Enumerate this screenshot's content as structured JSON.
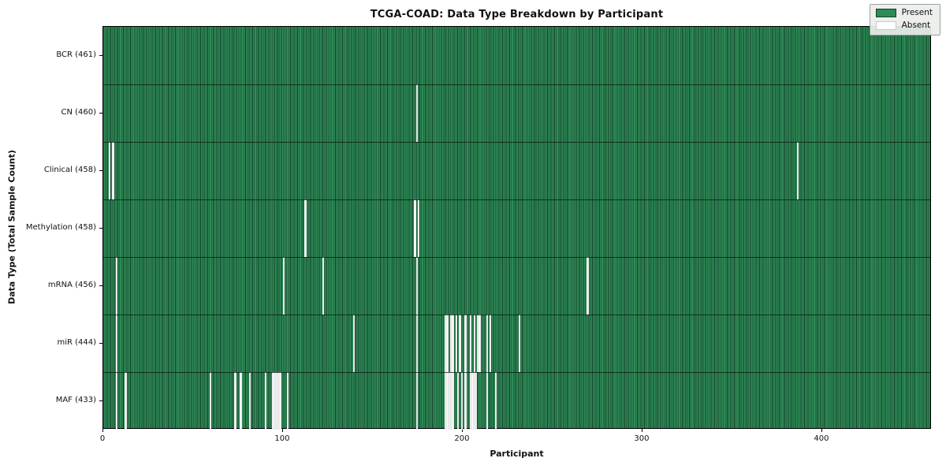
{
  "chart_data": {
    "type": "heatmap",
    "title": "TCGA-COAD: Data Type Breakdown by Participant",
    "xlabel": "Participant",
    "ylabel": "Data Type (Total Sample Count)",
    "n_participants": 461,
    "x_ticks": [
      0,
      100,
      200,
      300,
      400
    ],
    "grid": false,
    "legend_position": "upper right",
    "colors": {
      "present": "#2e8b57",
      "present_edge": "#14412a",
      "absent": "#fdfdfd",
      "row_divider": "rgba(5,25,15,0.75)"
    },
    "legend": [
      {
        "label": "Present",
        "color": "#2e8b57"
      },
      {
        "label": "Absent",
        "color": "#ffffff"
      }
    ],
    "rows": [
      {
        "label": "BCR (461)",
        "count": 461,
        "absent": []
      },
      {
        "label": "CN (460)",
        "count": 460,
        "absent": [
          174
        ]
      },
      {
        "label": "Clinical (458)",
        "count": 458,
        "absent": [
          3,
          5,
          386
        ]
      },
      {
        "label": "Methylation (458)",
        "count": 458,
        "absent": [
          112,
          173,
          175
        ]
      },
      {
        "label": "mRNA (456)",
        "count": 456,
        "absent": [
          7,
          100,
          122,
          174,
          269
        ]
      },
      {
        "label": "miR (444)",
        "count": 444,
        "absent": [
          7,
          139,
          174,
          190,
          191,
          193,
          194,
          196,
          198,
          201,
          204,
          206,
          208,
          209,
          213,
          215,
          231
        ]
      },
      {
        "label": "MAF (433)",
        "count": 433,
        "absent": [
          7,
          12,
          59,
          73,
          76,
          81,
          90,
          94,
          95,
          96,
          97,
          98,
          102,
          174,
          190,
          191,
          192,
          193,
          194,
          197,
          199,
          201,
          204,
          205,
          206,
          207,
          213,
          218
        ]
      }
    ]
  }
}
